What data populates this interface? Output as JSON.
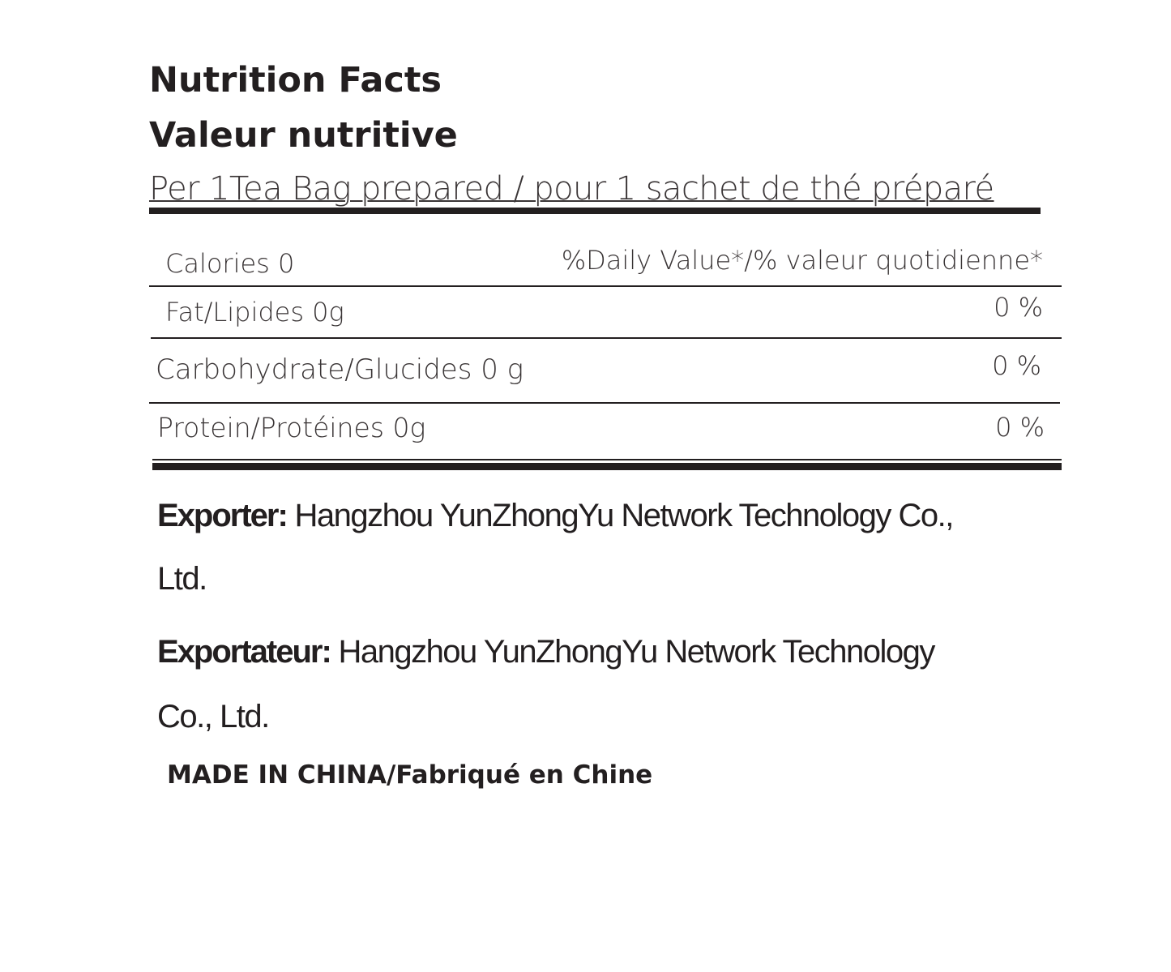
{
  "title_en": "Nutrition Facts",
  "title_fr": "Valeur nutritive",
  "serving": "Per 1Tea Bag prepared / pour 1 sachet de thé préparé",
  "calories": "Calories 0",
  "dv_header": "%Daily Value*/% valeur quotidienne*",
  "rows": [
    {
      "label": "Fat/Lipides 0g",
      "dv": "0 %"
    },
    {
      "label": "Carbohydrate/Glucides 0 g",
      "dv": "0 %"
    },
    {
      "label": "Protein/Protéines 0g",
      "dv": "0 %"
    }
  ],
  "exporter_label": "Exporter:",
  "exporter_value": "Hangzhou YunZhongYu Network Technology Co.,",
  "exporter_value2": "Ltd.",
  "exportateur_label": "Exportateur:",
  "exportateur_value": "Hangzhou YunZhongYu Network Technology",
  "exportateur_value2": "Co., Ltd.",
  "origin": "MADE IN CHINA/Fabriqué en Chine"
}
